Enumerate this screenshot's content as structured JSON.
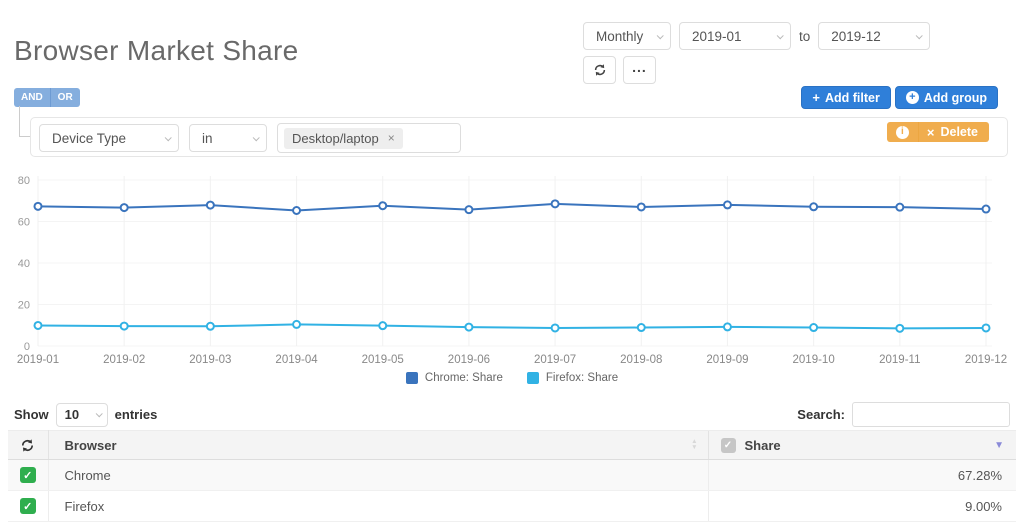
{
  "page": {
    "title": "Browser Market Share"
  },
  "toolbar": {
    "interval": "Monthly",
    "date_from": "2019-01",
    "to_label": "to",
    "date_to": "2019-12"
  },
  "querybuilder": {
    "and_label": "AND",
    "or_label": "OR",
    "add_filter_label": "Add filter",
    "add_group_label": "Add group",
    "delete_label": "Delete",
    "rule": {
      "field": "Device Type",
      "operator": "in",
      "value": "Desktop/laptop"
    }
  },
  "chart_data": {
    "type": "line",
    "x": [
      "2019-01",
      "2019-02",
      "2019-03",
      "2019-04",
      "2019-05",
      "2019-06",
      "2019-07",
      "2019-08",
      "2019-09",
      "2019-10",
      "2019-11",
      "2019-12"
    ],
    "series": [
      {
        "name": "Chrome: Share",
        "color": "#3a74bd",
        "values": [
          67.3,
          66.7,
          67.9,
          65.3,
          67.6,
          65.7,
          68.5,
          67.0,
          68.0,
          67.1,
          66.9,
          66.0
        ]
      },
      {
        "name": "Firefox: Share",
        "color": "#31b2e4",
        "values": [
          9.9,
          9.6,
          9.5,
          10.4,
          9.8,
          9.1,
          8.7,
          8.9,
          9.2,
          8.9,
          8.5,
          8.7
        ]
      }
    ],
    "ylim": [
      0,
      80
    ],
    "yticks": [
      0,
      20,
      40,
      60,
      80
    ],
    "grid": true,
    "legend_position": "bottom",
    "point_style": "open-circle"
  },
  "table": {
    "show_label": "Show",
    "page_size": "10",
    "entries_label": "entries",
    "search_label": "Search:",
    "search_value": "",
    "columns": {
      "browser": "Browser",
      "share": "Share"
    },
    "rows": [
      {
        "browser": "Chrome",
        "share": "67.28%"
      },
      {
        "browser": "Firefox",
        "share": "9.00%"
      }
    ]
  },
  "icons": {
    "plus": "+",
    "info": "i",
    "close": "×",
    "check": "✓",
    "ellipsis": "...",
    "sort_desc": "▼",
    "sort_up": "▲",
    "sort_down": "▼"
  },
  "colors": {
    "primary_blue": "#2f7fd9",
    "warning_orange": "#f0ad4e",
    "andor_blue": "#85aede",
    "chrome_series": "#3a74bd",
    "firefox_series": "#31b2e4",
    "row_check_green": "#2fae4e",
    "sort_active_purple": "#8a8ad8"
  }
}
